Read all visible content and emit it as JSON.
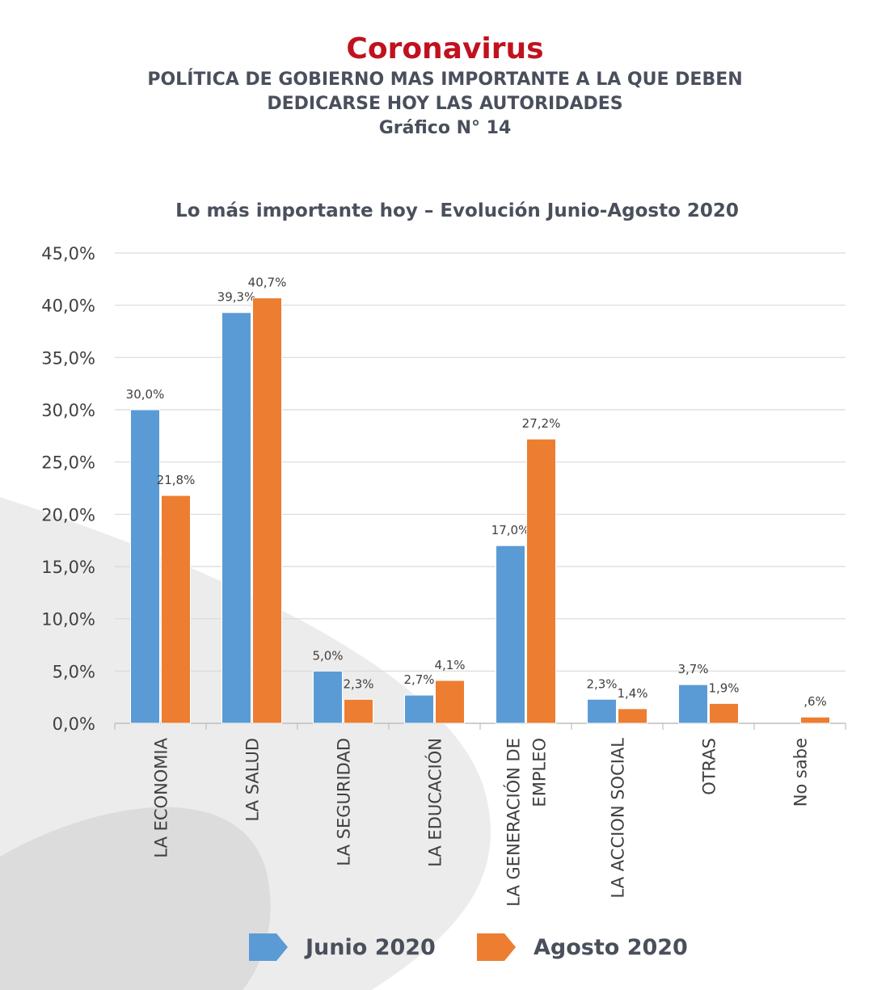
{
  "header": {
    "brand": "Coronavirus",
    "subtitle_lines": [
      "POLÍTICA DE GOBIERNO MAS IMPORTANTE A LA QUE DEBEN",
      "DEDICARSE HOY LAS AUTORIDADES",
      "Gráfico N° 14"
    ]
  },
  "colors": {
    "brand": "#c0121e",
    "text": "#4a4f5c",
    "junio": "#5b9bd5",
    "agosto": "#ed7d31",
    "grid": "#d9d9d9",
    "background_shape": "#ececec"
  },
  "chart_data": {
    "type": "bar",
    "title": "Lo más importante hoy – Evolución Junio-Agosto 2020",
    "categories": [
      [
        "LA ECONOMIA"
      ],
      [
        "LA SALUD"
      ],
      [
        "LA SEGURIDAD"
      ],
      [
        "LA EDUCACIÓN"
      ],
      [
        "LA GENERACIÓN DE",
        "EMPLEO"
      ],
      [
        "LA ACCION SOCIAL"
      ],
      [
        "OTRAS"
      ],
      [
        "No sabe"
      ]
    ],
    "series": [
      {
        "name": "Junio 2020",
        "values": [
          30.0,
          39.3,
          5.0,
          2.7,
          17.0,
          2.3,
          3.7,
          null
        ],
        "labels": [
          "30,0%",
          "39,3%",
          "5,0%",
          "2,7%",
          "17,0%",
          "2,3%",
          "3,7%",
          null
        ]
      },
      {
        "name": "Agosto 2020",
        "values": [
          21.8,
          40.7,
          2.3,
          4.1,
          27.2,
          1.4,
          1.9,
          0.6
        ],
        "labels": [
          "21,8%",
          "40,7%",
          "2,3%",
          "4,1%",
          "27,2%",
          "1,4%",
          "1,9%",
          ",6%"
        ]
      }
    ],
    "ylim": [
      0,
      45
    ],
    "yticks": [
      "0,0%",
      "5,0%",
      "10,0%",
      "15,0%",
      "20,0%",
      "25,0%",
      "30,0%",
      "35,0%",
      "40,0%",
      "45,0%"
    ],
    "grid": true,
    "legend_position": "bottom"
  }
}
